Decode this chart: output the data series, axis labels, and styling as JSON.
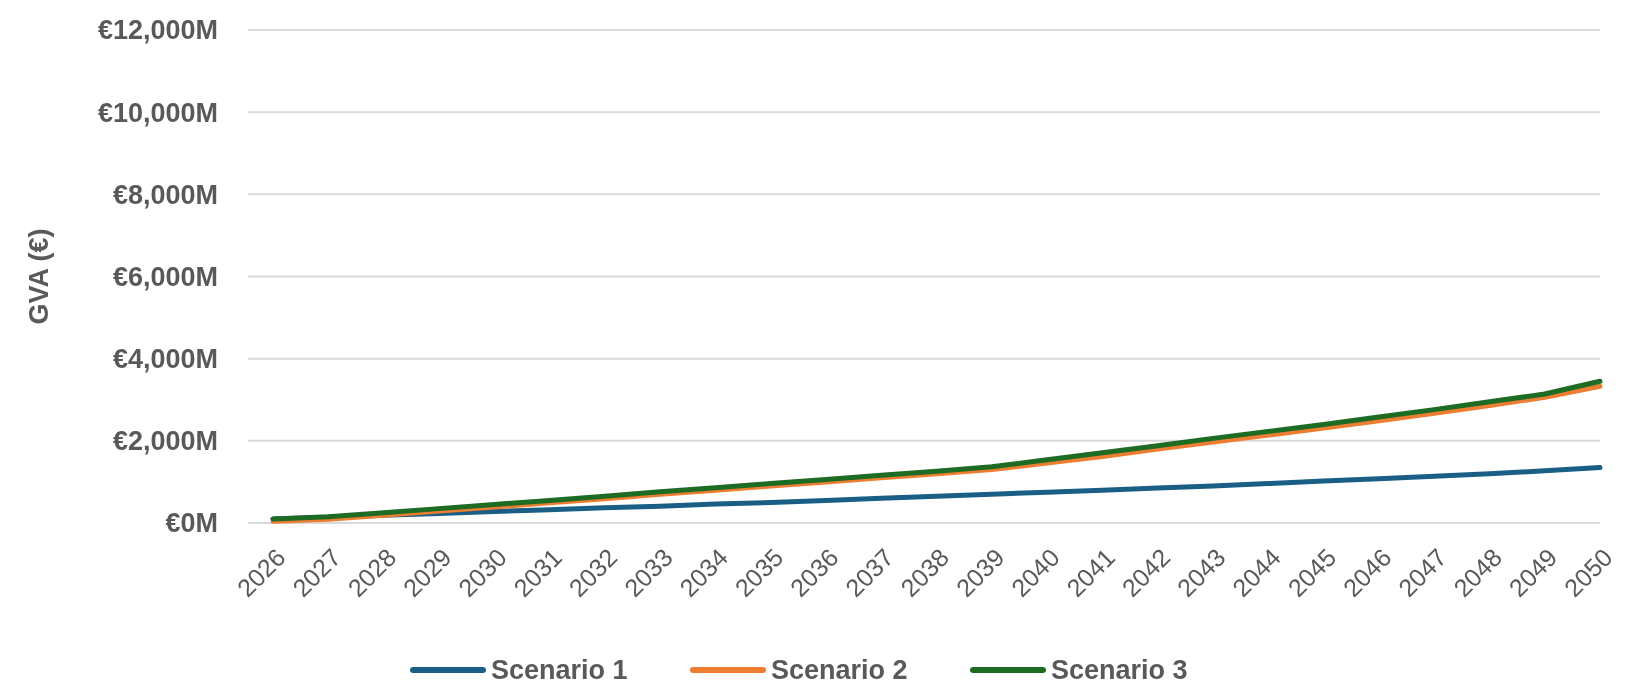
{
  "chart_data": {
    "type": "line",
    "ylabel": "GVA (€)",
    "categories": [
      "2026",
      "2027",
      "2028",
      "2029",
      "2030",
      "2031",
      "2032",
      "2033",
      "2034",
      "2035",
      "2036",
      "2037",
      "2038",
      "2039",
      "2040",
      "2041",
      "2042",
      "2043",
      "2044",
      "2045",
      "2046",
      "2047",
      "2048",
      "2049",
      "2050"
    ],
    "series": [
      {
        "name": "Scenario 1",
        "color": "#1a5e86",
        "values": [
          100,
          140,
          190,
          230,
          280,
          320,
          370,
          410,
          460,
          500,
          550,
          600,
          650,
          700,
          750,
          800,
          850,
          900,
          960,
          1020,
          1080,
          1140,
          1200,
          1270,
          1350
        ]
      },
      {
        "name": "Scenario 2",
        "color": "#ed7d31",
        "values": [
          40,
          90,
          190,
          290,
          390,
          490,
          590,
          700,
          800,
          900,
          1000,
          1100,
          1200,
          1300,
          1460,
          1620,
          1800,
          1970,
          2140,
          2310,
          2490,
          2670,
          2860,
          3060,
          3330
        ]
      },
      {
        "name": "Scenario 3",
        "color": "#1e6b23",
        "values": [
          100,
          150,
          250,
          350,
          450,
          550,
          650,
          760,
          860,
          960,
          1060,
          1160,
          1260,
          1370,
          1540,
          1710,
          1880,
          2060,
          2230,
          2400,
          2580,
          2760,
          2950,
          3140,
          3450
        ]
      }
    ],
    "ylim": [
      0,
      12000
    ],
    "yticks": [
      {
        "value": 0,
        "label": "€0M"
      },
      {
        "value": 2000,
        "label": "€2,000M"
      },
      {
        "value": 4000,
        "label": "€4,000M"
      },
      {
        "value": 6000,
        "label": "€6,000M"
      },
      {
        "value": 8000,
        "label": "€8,000M"
      },
      {
        "value": 10000,
        "label": "€10,000M"
      },
      {
        "value": 12000,
        "label": "€12,000M"
      }
    ],
    "grid": "y",
    "legend": "bottom",
    "marker": "none",
    "line_style": "solid"
  }
}
